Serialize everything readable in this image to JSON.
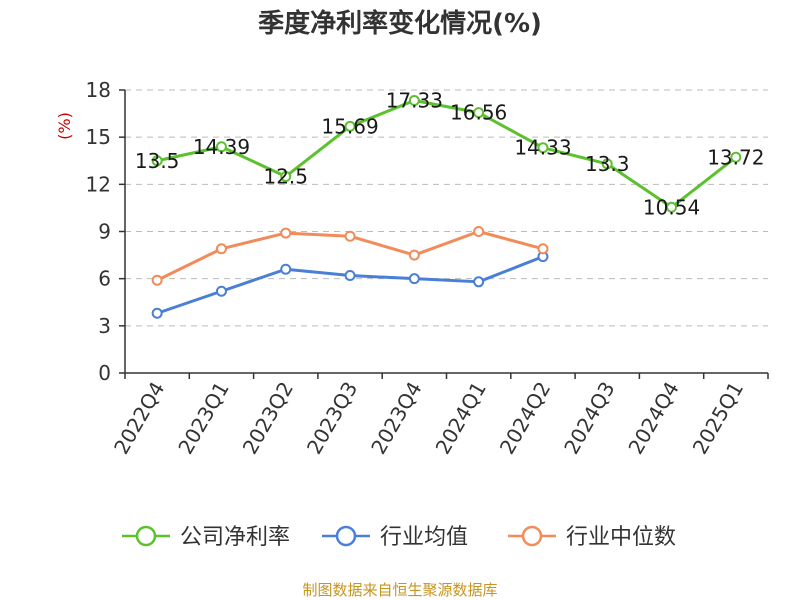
{
  "chart_data": {
    "type": "line",
    "title": "季度净利率变化情况(%)",
    "ylabel": "(%)",
    "xlabel": "",
    "categories": [
      "2022Q4",
      "2023Q1",
      "2023Q2",
      "2023Q3",
      "2023Q4",
      "2024Q1",
      "2024Q2",
      "2024Q3",
      "2024Q4",
      "2025Q1"
    ],
    "yticks": [
      0,
      3,
      6,
      9,
      12,
      15,
      18
    ],
    "ylim": [
      0,
      18
    ],
    "grid": true,
    "legend_position": "bottom",
    "series": [
      {
        "name": "公司净利率",
        "color": "#5cc12e",
        "show_labels": true,
        "values": [
          13.5,
          14.39,
          12.5,
          15.69,
          17.33,
          16.56,
          14.33,
          13.3,
          10.54,
          13.72
        ],
        "labels": [
          "13.5",
          "14.39",
          "12.5",
          "15.69",
          "17.33",
          "16.56",
          "14.33",
          "13.3",
          "10.54",
          "13.72"
        ]
      },
      {
        "name": "行业均值",
        "color": "#4a7fd8",
        "show_labels": false,
        "values": [
          3.8,
          5.2,
          6.6,
          6.2,
          6.0,
          5.8,
          7.4,
          null,
          null,
          null
        ]
      },
      {
        "name": "行业中位数",
        "color": "#f28b5a",
        "show_labels": false,
        "values": [
          5.9,
          7.9,
          8.9,
          8.7,
          7.5,
          9.0,
          7.9,
          null,
          null,
          null
        ]
      }
    ]
  },
  "source": "制图数据来自恒生聚源数据库"
}
